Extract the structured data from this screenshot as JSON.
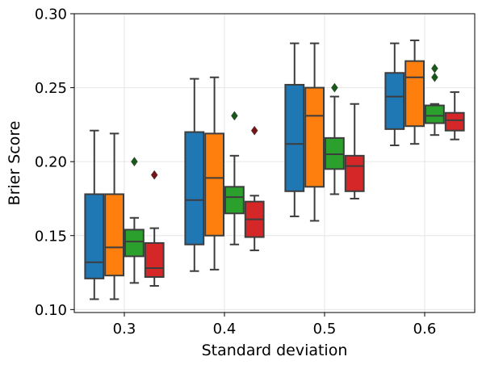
{
  "chart_data": {
    "type": "box",
    "title": "",
    "xlabel": "Standard deviation",
    "ylabel": "Brier Score",
    "categories": [
      "0.3",
      "0.4",
      "0.5",
      "0.6"
    ],
    "ylim": [
      0.098,
      0.3
    ],
    "yticks": [
      0.1,
      0.15,
      0.2,
      0.25,
      0.3
    ],
    "ytick_labels": [
      "0.10",
      "0.15",
      "0.20",
      "0.25",
      "0.30"
    ],
    "grid": true,
    "legend": null,
    "series": [
      {
        "color": "#1f77b4",
        "boxes": [
          {
            "whisker_low": 0.107,
            "q1": 0.121,
            "median": 0.132,
            "q3": 0.178,
            "whisker_high": 0.221,
            "outliers": []
          },
          {
            "whisker_low": 0.126,
            "q1": 0.144,
            "median": 0.174,
            "q3": 0.22,
            "whisker_high": 0.256,
            "outliers": []
          },
          {
            "whisker_low": 0.163,
            "q1": 0.18,
            "median": 0.212,
            "q3": 0.252,
            "whisker_high": 0.28,
            "outliers": []
          },
          {
            "whisker_low": 0.211,
            "q1": 0.222,
            "median": 0.244,
            "q3": 0.26,
            "whisker_high": 0.28,
            "outliers": []
          }
        ]
      },
      {
        "color": "#ff7f0e",
        "boxes": [
          {
            "whisker_low": 0.107,
            "q1": 0.123,
            "median": 0.142,
            "q3": 0.178,
            "whisker_high": 0.219,
            "outliers": []
          },
          {
            "whisker_low": 0.127,
            "q1": 0.15,
            "median": 0.189,
            "q3": 0.219,
            "whisker_high": 0.257,
            "outliers": []
          },
          {
            "whisker_low": 0.16,
            "q1": 0.183,
            "median": 0.231,
            "q3": 0.25,
            "whisker_high": 0.28,
            "outliers": []
          },
          {
            "whisker_low": 0.212,
            "q1": 0.224,
            "median": 0.257,
            "q3": 0.268,
            "whisker_high": 0.282,
            "outliers": []
          }
        ]
      },
      {
        "color": "#2ca02c",
        "boxes": [
          {
            "whisker_low": 0.118,
            "q1": 0.136,
            "median": 0.146,
            "q3": 0.154,
            "whisker_high": 0.162,
            "outliers": [
              0.2
            ]
          },
          {
            "whisker_low": 0.144,
            "q1": 0.165,
            "median": 0.176,
            "q3": 0.183,
            "whisker_high": 0.204,
            "outliers": [
              0.231
            ]
          },
          {
            "whisker_low": 0.178,
            "q1": 0.195,
            "median": 0.205,
            "q3": 0.216,
            "whisker_high": 0.244,
            "outliers": [
              0.25
            ]
          },
          {
            "whisker_low": 0.218,
            "q1": 0.226,
            "median": 0.231,
            "q3": 0.238,
            "whisker_high": 0.239,
            "outliers": [
              0.257,
              0.263
            ]
          }
        ]
      },
      {
        "color": "#d62728",
        "boxes": [
          {
            "whisker_low": 0.116,
            "q1": 0.122,
            "median": 0.128,
            "q3": 0.145,
            "whisker_high": 0.155,
            "outliers": [
              0.191
            ]
          },
          {
            "whisker_low": 0.14,
            "q1": 0.149,
            "median": 0.161,
            "q3": 0.173,
            "whisker_high": 0.177,
            "outliers": [
              0.221
            ]
          },
          {
            "whisker_low": 0.175,
            "q1": 0.18,
            "median": 0.197,
            "q3": 0.204,
            "whisker_high": 0.239,
            "outliers": []
          },
          {
            "whisker_low": 0.215,
            "q1": 0.221,
            "median": 0.228,
            "q3": 0.233,
            "whisker_high": 0.247,
            "outliers": []
          }
        ]
      }
    ]
  }
}
